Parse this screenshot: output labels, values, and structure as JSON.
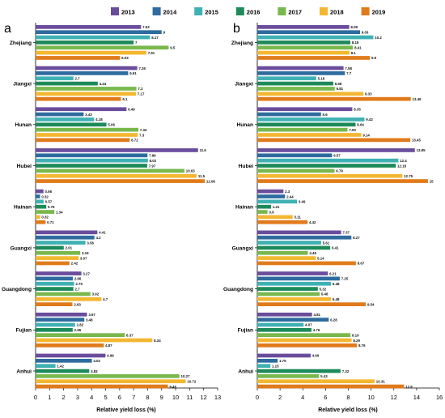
{
  "chart_data": [
    {
      "type": "bar",
      "orientation": "horizontal",
      "panel_label": "a",
      "xlabel": "Relative yield loss (%)",
      "xlim": [
        0,
        13
      ],
      "xticks": [
        0,
        1,
        2,
        3,
        4,
        5,
        6,
        7,
        8,
        9,
        10,
        11,
        12,
        13
      ],
      "categories": [
        "Zhejiang",
        "Jiangxi",
        "Hunan",
        "Hubei",
        "Hainan",
        "Guangxi",
        "Guangdong",
        "Fujian",
        "Anhui"
      ],
      "series": [
        {
          "name": "2013",
          "values": [
            7.53,
            7.26,
            6.49,
            11.6,
            0.56,
            4.41,
            3.27,
            3.67,
            4.99
          ]
        },
        {
          "name": "2014",
          "values": [
            9,
            6.61,
            3.43,
            7.99,
            0.32,
            4.2,
            2.66,
            3.48,
            4.02
          ]
        },
        {
          "name": "2015",
          "values": [
            8.17,
            2.7,
            4.18,
            8.02,
            0.57,
            3.56,
            2.75,
            2.82,
            1.42
          ]
        },
        {
          "name": "2016",
          "values": [
            7,
            4.44,
            5.06,
            7.97,
            0.76,
            2.01,
            2.7,
            2.65,
            3.83
          ]
        },
        {
          "name": "2017",
          "values": [
            9.5,
            7.2,
            7.34,
            10.63,
            1.34,
            3.19,
            3.92,
            6.37,
            10.27
          ]
        },
        {
          "name": "2018",
          "values": [
            7.91,
            7.17,
            7.3,
            11.5,
            0.32,
            3.07,
            4.7,
            8.34,
            10.72
          ]
        },
        {
          "name": "2019",
          "values": [
            6.03,
            6.1,
            6.72,
            12.08,
            0.71,
            2.42,
            2.63,
            4.87,
            9.45
          ]
        }
      ]
    },
    {
      "type": "bar",
      "orientation": "horizontal",
      "panel_label": "b",
      "xlabel": "Relative yield loss (%)",
      "xlim": [
        0,
        16
      ],
      "xticks": [
        0,
        2,
        4,
        6,
        8,
        10,
        12,
        14,
        16
      ],
      "categories": [
        "Zhejiang",
        "Jiangxi",
        "Hunan",
        "Hubei",
        "Hainan",
        "Guangxi",
        "Guangdong",
        "Fujian",
        "Anhui"
      ],
      "series": [
        {
          "name": "2013",
          "values": [
            8.08,
            7.58,
            8.35,
            13.85,
            2.3,
            7.37,
            6.21,
            4.81,
            4.69
          ]
        },
        {
          "name": "2014",
          "values": [
            9.03,
            7.7,
            5.6,
            6.57,
            2.44,
            8.27,
            7.25,
            6.28,
            1.79
          ]
        },
        {
          "name": "2015",
          "values": [
            10.2,
            5.18,
            9.42,
            12.4,
            3.49,
            5.61,
            6.48,
            4.07,
            1.15
          ]
        },
        {
          "name": "2016",
          "values": [
            8.18,
            6.68,
            8.64,
            12.18,
            1.21,
            6.41,
            5.32,
            4.76,
            7.32
          ]
        },
        {
          "name": "2017",
          "values": [
            8.41,
            6.81,
            7.93,
            6.79,
            0.9,
            4.45,
            5.48,
            8.19,
            5.43
          ]
        },
        {
          "name": "2018",
          "values": [
            8.1,
            9.33,
            9.14,
            12.75,
            3.11,
            5.14,
            6.48,
            8.29,
            10.31
          ]
        },
        {
          "name": "2019",
          "values": [
            9.9,
            13.49,
            13.45,
            15,
            4.42,
            8.67,
            9.54,
            8.76,
            12.9
          ]
        }
      ]
    }
  ],
  "legend": {
    "position": "top",
    "entries": [
      {
        "label": "2013",
        "color": "#6a4c9c"
      },
      {
        "label": "2014",
        "color": "#2e6b9e"
      },
      {
        "label": "2015",
        "color": "#3fb1b3"
      },
      {
        "label": "2016",
        "color": "#1d8a5a"
      },
      {
        "label": "2017",
        "color": "#79b84d"
      },
      {
        "label": "2018",
        "color": "#f4b731"
      },
      {
        "label": "2019",
        "color": "#e07b1b"
      }
    ]
  }
}
